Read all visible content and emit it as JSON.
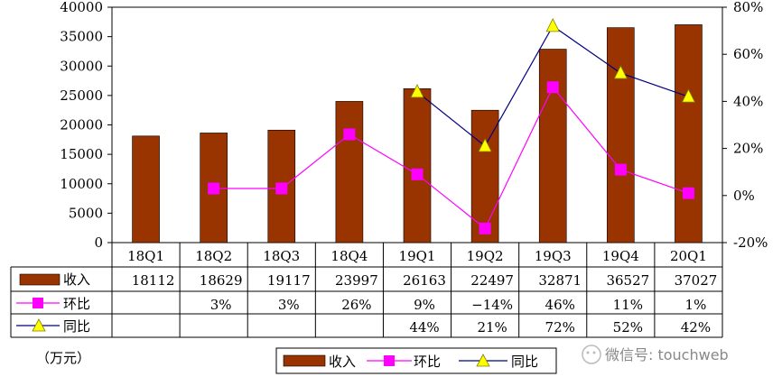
{
  "chart_data": {
    "type": "bar",
    "categories": [
      "18Q1",
      "18Q2",
      "18Q3",
      "18Q4",
      "19Q1",
      "19Q2",
      "19Q3",
      "19Q4",
      "20Q1"
    ],
    "unit_label": "（万元）",
    "y_left": {
      "ylim": [
        0,
        40000
      ],
      "ticks": [
        "0",
        "5000",
        "10000",
        "15000",
        "20000",
        "25000",
        "30000",
        "35000",
        "40000"
      ]
    },
    "y_right": {
      "ylim": [
        -20,
        80
      ],
      "ticks": [
        "-20%",
        "0%",
        "20%",
        "40%",
        "60%",
        "80%"
      ]
    },
    "series": [
      {
        "name": "收入",
        "type": "bar",
        "color": "#993300",
        "values": [
          18112,
          18629,
          19117,
          23997,
          26163,
          22497,
          32871,
          36527,
          37027
        ],
        "labels": [
          "18112",
          "18629",
          "19117",
          "23997",
          "26163",
          "22497",
          "32871",
          "36527",
          "37027"
        ]
      },
      {
        "name": "环比",
        "type": "line",
        "marker": "square",
        "color": "#ff00ff",
        "values": [
          null,
          3,
          3,
          26,
          9,
          -14,
          46,
          11,
          1
        ],
        "labels": [
          "",
          "3%",
          "3%",
          "26%",
          "9%",
          "−14%",
          "46%",
          "11%",
          "1%"
        ]
      },
      {
        "name": "同比",
        "type": "line",
        "marker": "triangle",
        "color": "#000080",
        "marker_color": "#ffff00",
        "values": [
          null,
          null,
          null,
          null,
          44,
          21,
          72,
          52,
          42
        ],
        "labels": [
          "",
          "",
          "",
          "",
          "44%",
          "21%",
          "72%",
          "52%",
          "42%"
        ]
      }
    ],
    "legend_position": "bottom"
  },
  "watermark": "微信号: touchweb"
}
